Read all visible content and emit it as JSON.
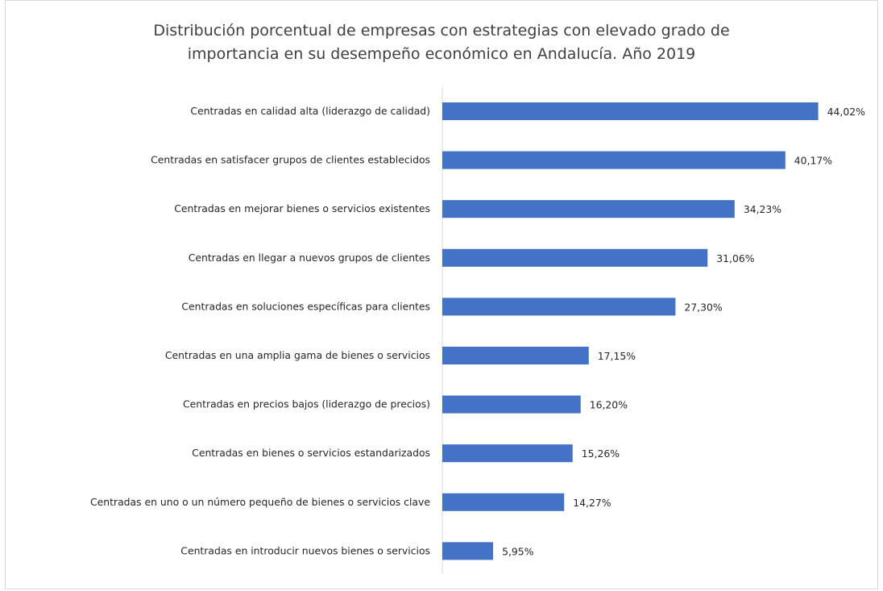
{
  "chart_data": {
    "type": "bar",
    "orientation": "horizontal",
    "title_lines": [
      "Distribución porcentual de empresas con estrategias con elevado grado de",
      "importancia en su desempeño económico en Andalucía. Año 2019"
    ],
    "categories": [
      "Centradas en calidad alta (liderazgo de calidad)",
      "Centradas en satisfacer grupos de clientes establecidos",
      "Centradas en mejorar bienes o servicios existentes",
      "Centradas en llegar a nuevos grupos de clientes",
      "Centradas en soluciones específicas para clientes",
      "Centradas en una amplia gama de bienes o servicios",
      "Centradas en precios bajos (liderazgo de precios)",
      "Centradas en bienes o servicios estandarizados",
      "Centradas en uno o un número pequeño de bienes o servicios clave",
      "Centradas en introducir nuevos bienes o servicios"
    ],
    "values": [
      44.02,
      40.17,
      34.23,
      31.06,
      27.3,
      17.15,
      16.2,
      15.26,
      14.27,
      5.95
    ],
    "value_labels": [
      "44,02%",
      "40,17%",
      "34,23%",
      "31,06%",
      "27,30%",
      "17,15%",
      "16,20%",
      "15,26%",
      "14,27%",
      "5,95%"
    ],
    "xlim": [
      0,
      50
    ],
    "bar_color": "#4472c4",
    "grid": false,
    "legend": "none"
  }
}
